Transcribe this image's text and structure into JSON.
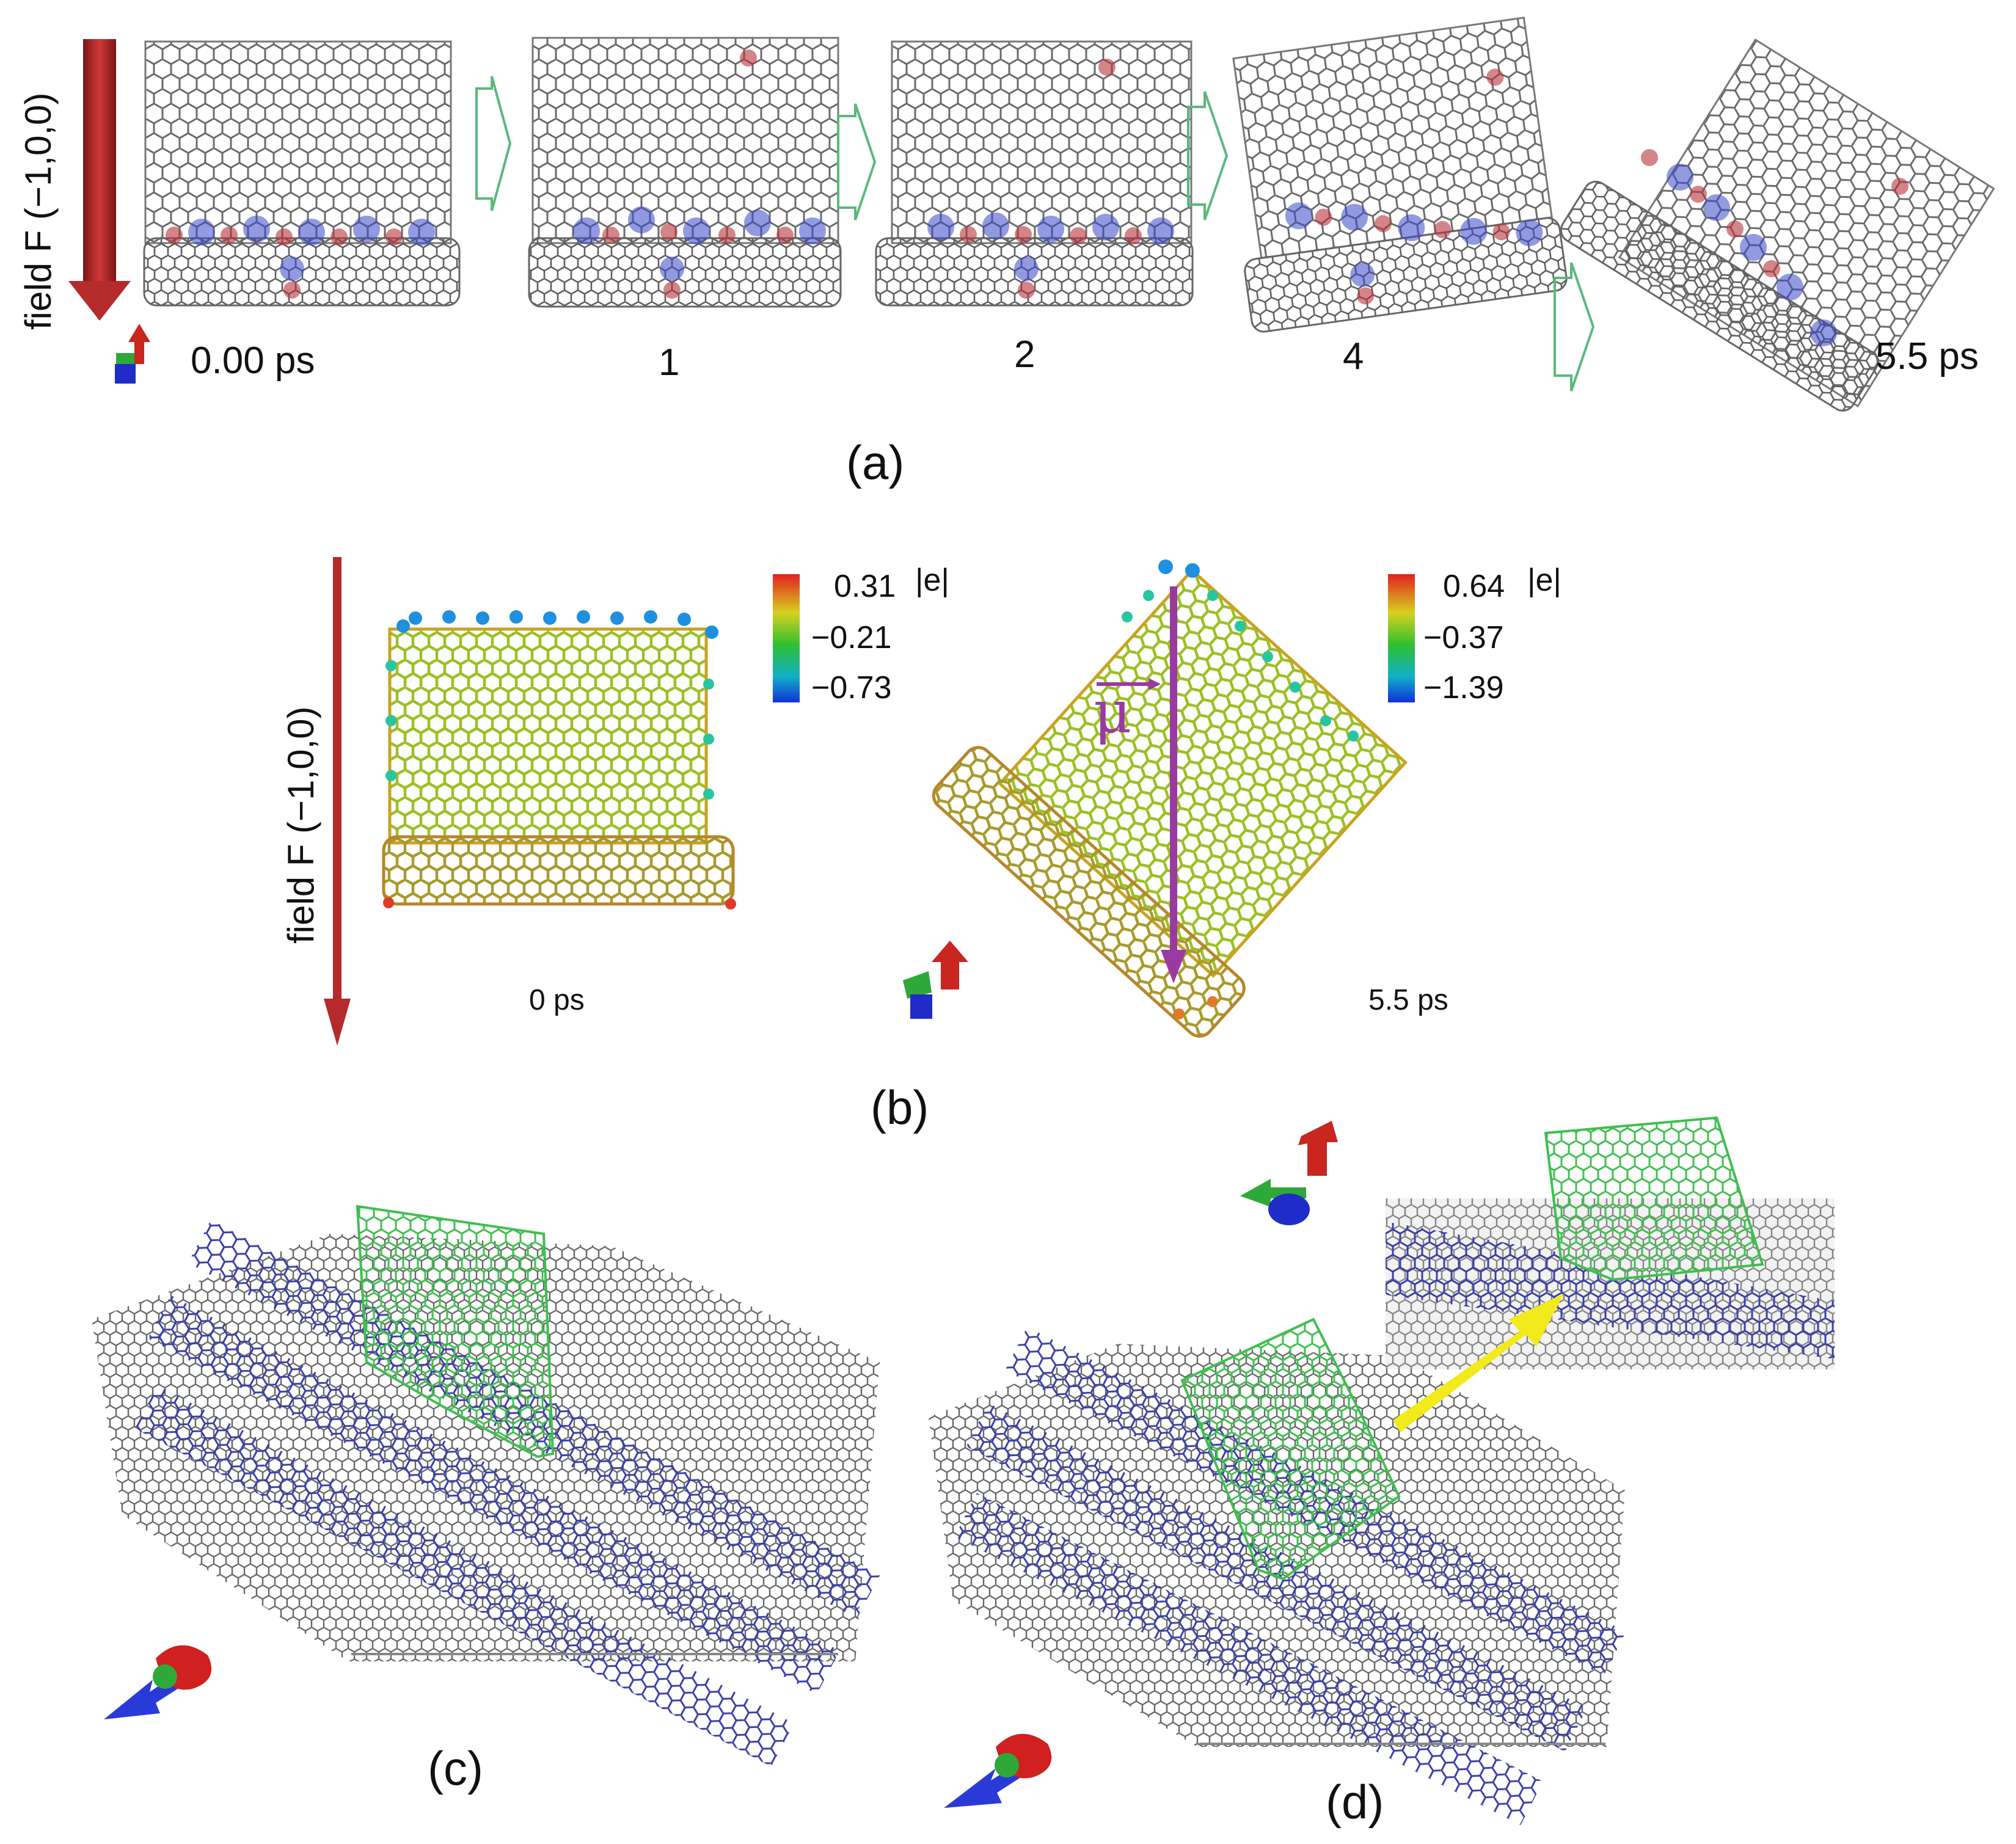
{
  "panel_a": {
    "field_label": "field F (−1,0,0)",
    "time_labels": [
      "0.00 ps",
      "1",
      "2",
      "4",
      "5.5 ps"
    ],
    "panel_label": "(a)"
  },
  "panel_b": {
    "field_label": "field F (−1,0,0)",
    "left_time": "0 ps",
    "right_time": "5.5 ps",
    "left_colorbar": {
      "max": "0.31",
      "mid": "−0.21",
      "min": "−0.73",
      "unit": "|e|"
    },
    "right_colorbar": {
      "max": "0.64",
      "mid": "−0.37",
      "min": "−1.39",
      "unit": "|e|"
    },
    "dipole_symbol": "μ",
    "panel_label": "(b)"
  },
  "panel_c": {
    "panel_label": "(c)"
  },
  "panel_d": {
    "panel_label": "(d)"
  },
  "colors": {
    "field_arrow": "#b52a2a",
    "graphene_gray": "#6a6a6a",
    "nanotube_blue": "#3b3fa6",
    "flake_green": "#3fbf4f",
    "dipole_purple": "#9a3aa0",
    "pointer_yellow": "#f2ea1a",
    "step_arrow": "#5ab97a"
  }
}
